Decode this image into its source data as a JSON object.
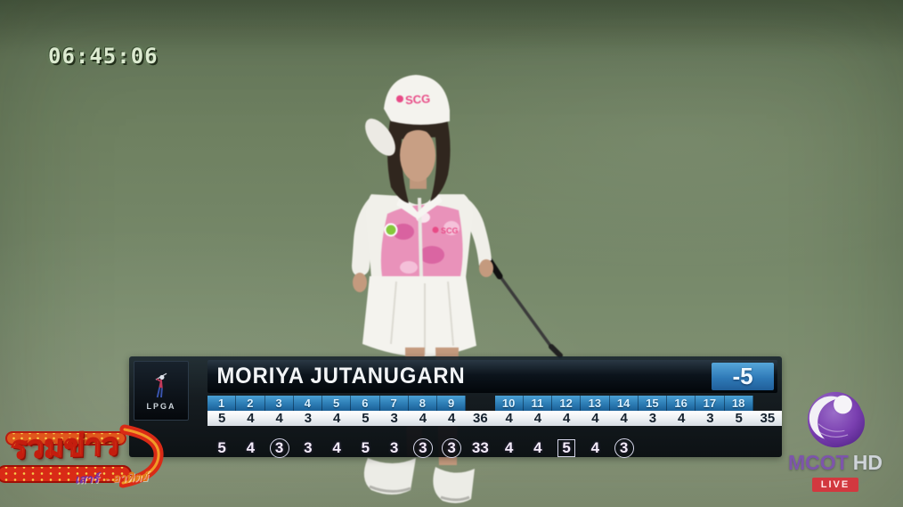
{
  "timestamp": {
    "text": "06:45:06"
  },
  "scoreboard": {
    "tour_label": "LPGA",
    "player_name": "MORIYA JUTANUGARN",
    "total_score": "-5",
    "columns": [
      {
        "hole": "1",
        "par": "5",
        "score": "5",
        "mark": "none"
      },
      {
        "hole": "2",
        "par": "4",
        "score": "4",
        "mark": "none"
      },
      {
        "hole": "3",
        "par": "4",
        "score": "3",
        "mark": "circle"
      },
      {
        "hole": "4",
        "par": "3",
        "score": "3",
        "mark": "none"
      },
      {
        "hole": "5",
        "par": "4",
        "score": "4",
        "mark": "none"
      },
      {
        "hole": "6",
        "par": "5",
        "score": "5",
        "mark": "none"
      },
      {
        "hole": "7",
        "par": "3",
        "score": "3",
        "mark": "none"
      },
      {
        "hole": "8",
        "par": "4",
        "score": "3",
        "mark": "circle"
      },
      {
        "hole": "9",
        "par": "4",
        "score": "3",
        "mark": "circle"
      },
      {
        "hole": "",
        "par": "36",
        "score": "33",
        "mark": "none",
        "type": "total"
      },
      {
        "hole": "10",
        "par": "4",
        "score": "4",
        "mark": "none"
      },
      {
        "hole": "11",
        "par": "4",
        "score": "4",
        "mark": "none"
      },
      {
        "hole": "12",
        "par": "4",
        "score": "5",
        "mark": "box"
      },
      {
        "hole": "13",
        "par": "4",
        "score": "4",
        "mark": "none"
      },
      {
        "hole": "14",
        "par": "4",
        "score": "3",
        "mark": "circle"
      },
      {
        "hole": "15",
        "par": "3",
        "score": "",
        "mark": "none"
      },
      {
        "hole": "16",
        "par": "4",
        "score": "",
        "mark": "none"
      },
      {
        "hole": "17",
        "par": "3",
        "score": "",
        "mark": "none"
      },
      {
        "hole": "18",
        "par": "5",
        "score": "",
        "mark": "none"
      },
      {
        "hole": "",
        "par": "35",
        "score": "",
        "mark": "none",
        "type": "total"
      }
    ]
  },
  "channel": {
    "brand": "MCOT",
    "brand_suffix": "HD",
    "live_badge": "LIVE"
  },
  "program": {
    "title": "รวมข่าว",
    "subtitle_left": "เสาร์",
    "subtitle_right": "- อาทิตย์"
  },
  "player_figure": {
    "cap_logo": "SCG",
    "shirt_logo": "SCG"
  },
  "colors": {
    "total_box_blue": "#2f7ab8",
    "hole_tile_blue": "#2c7cb4",
    "live_red": "#d2383f",
    "mcot_purple": "#7a3fb0",
    "program_yellow": "#f8d040",
    "program_red": "#d92a16"
  }
}
